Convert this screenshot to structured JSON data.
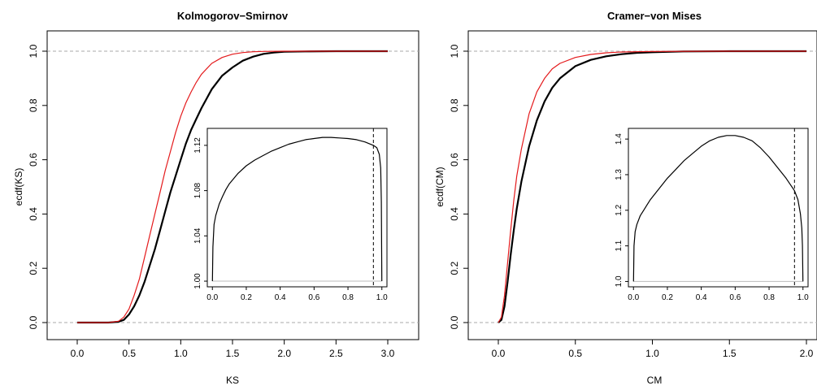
{
  "chart_data": [
    {
      "type": "line",
      "title": "Kolmogorov−Smirnov",
      "xlabel": "KS",
      "ylabel": "ecdf(KS)",
      "xlim": [
        0,
        3
      ],
      "ylim": [
        0,
        1
      ],
      "x_ticks": [
        "0.0",
        "0.5",
        "1.0",
        "1.5",
        "2.0",
        "2.5",
        "3.0"
      ],
      "y_ticks": [
        "0.0",
        "0.2",
        "0.4",
        "0.6",
        "0.8",
        "1.0"
      ],
      "reference_lines": [
        0,
        1
      ],
      "series": [
        {
          "color": "#000000",
          "x": [
            0.0,
            0.3,
            0.4,
            0.45,
            0.5,
            0.55,
            0.6,
            0.65,
            0.7,
            0.75,
            0.8,
            0.85,
            0.9,
            0.95,
            1.0,
            1.05,
            1.1,
            1.15,
            1.2,
            1.3,
            1.4,
            1.5,
            1.6,
            1.7,
            1.8,
            1.9,
            2.0,
            2.2,
            2.5,
            3.0
          ],
          "y": [
            0.0,
            0.0,
            0.003,
            0.01,
            0.03,
            0.06,
            0.1,
            0.15,
            0.21,
            0.27,
            0.34,
            0.41,
            0.48,
            0.54,
            0.6,
            0.66,
            0.71,
            0.75,
            0.79,
            0.86,
            0.91,
            0.94,
            0.965,
            0.98,
            0.99,
            0.995,
            0.998,
            0.999,
            1.0,
            1.0
          ]
        },
        {
          "color": "#e41a1c",
          "x": [
            0.0,
            0.3,
            0.4,
            0.45,
            0.5,
            0.55,
            0.6,
            0.65,
            0.7,
            0.75,
            0.8,
            0.85,
            0.9,
            0.95,
            1.0,
            1.05,
            1.1,
            1.15,
            1.2,
            1.3,
            1.4,
            1.5,
            1.6,
            1.7,
            1.8,
            2.0,
            2.5,
            3.0
          ],
          "y": [
            0.0,
            0.0,
            0.005,
            0.02,
            0.05,
            0.1,
            0.16,
            0.24,
            0.32,
            0.4,
            0.48,
            0.56,
            0.63,
            0.7,
            0.76,
            0.81,
            0.85,
            0.885,
            0.915,
            0.955,
            0.977,
            0.989,
            0.995,
            0.998,
            0.999,
            1.0,
            1.0,
            1.0
          ]
        }
      ],
      "inset": {
        "xlim": [
          -0.03,
          1.03
        ],
        "ylim": [
          0.995,
          1.135
        ],
        "x_ticks": [
          "0.0",
          "0.2",
          "0.4",
          "0.6",
          "0.8",
          "1.0"
        ],
        "y_ticks": [
          "1.00",
          "1.04",
          "1.08",
          "1.12"
        ],
        "baseline": 1.0,
        "vline": 0.95,
        "x": [
          0.0,
          0.003,
          0.01,
          0.02,
          0.04,
          0.06,
          0.08,
          0.1,
          0.15,
          0.2,
          0.25,
          0.3,
          0.35,
          0.4,
          0.45,
          0.5,
          0.55,
          0.6,
          0.65,
          0.7,
          0.75,
          0.8,
          0.85,
          0.9,
          0.95,
          0.97,
          0.985,
          0.993,
          0.997,
          1.0
        ],
        "y": [
          1.0,
          1.03,
          1.05,
          1.058,
          1.068,
          1.075,
          1.081,
          1.086,
          1.095,
          1.102,
          1.107,
          1.111,
          1.115,
          1.118,
          1.121,
          1.123,
          1.125,
          1.126,
          1.127,
          1.127,
          1.1265,
          1.126,
          1.125,
          1.123,
          1.12,
          1.118,
          1.112,
          1.1,
          1.07,
          1.0
        ]
      }
    },
    {
      "type": "line",
      "title": "Cramer−von Mises",
      "xlabel": "CM",
      "ylabel": "ecdf(CM)",
      "xlim": [
        0,
        2
      ],
      "ylim": [
        0,
        1
      ],
      "x_ticks": [
        "0.0",
        "0.5",
        "1.0",
        "1.5",
        "2.0"
      ],
      "y_ticks": [
        "0.0",
        "0.2",
        "0.4",
        "0.6",
        "0.8",
        "1.0"
      ],
      "reference_lines": [
        0,
        1
      ],
      "series": [
        {
          "color": "#000000",
          "x": [
            0.0,
            0.02,
            0.04,
            0.06,
            0.08,
            0.1,
            0.12,
            0.15,
            0.2,
            0.25,
            0.3,
            0.35,
            0.4,
            0.5,
            0.6,
            0.7,
            0.8,
            0.9,
            1.0,
            1.2,
            1.5,
            2.0
          ],
          "y": [
            0.0,
            0.01,
            0.06,
            0.15,
            0.25,
            0.34,
            0.42,
            0.52,
            0.65,
            0.745,
            0.815,
            0.865,
            0.9,
            0.945,
            0.968,
            0.981,
            0.989,
            0.994,
            0.996,
            0.999,
            1.0,
            1.0
          ]
        },
        {
          "color": "#e41a1c",
          "x": [
            0.0,
            0.02,
            0.04,
            0.06,
            0.08,
            0.1,
            0.12,
            0.15,
            0.2,
            0.25,
            0.3,
            0.35,
            0.4,
            0.5,
            0.6,
            0.7,
            0.8,
            1.0,
            1.5,
            2.0
          ],
          "y": [
            0.0,
            0.02,
            0.1,
            0.22,
            0.34,
            0.45,
            0.54,
            0.64,
            0.77,
            0.85,
            0.9,
            0.935,
            0.955,
            0.977,
            0.988,
            0.994,
            0.997,
            0.999,
            1.0,
            1.0
          ]
        }
      ],
      "inset": {
        "xlim": [
          -0.03,
          1.03
        ],
        "ylim": [
          0.985,
          1.43
        ],
        "x_ticks": [
          "0.0",
          "0.2",
          "0.4",
          "0.6",
          "0.8",
          "1.0"
        ],
        "y_ticks": [
          "1.0",
          "1.1",
          "1.2",
          "1.3",
          "1.4"
        ],
        "baseline": 1.0,
        "vline": 0.95,
        "x": [
          0.0,
          0.003,
          0.01,
          0.02,
          0.04,
          0.06,
          0.08,
          0.1,
          0.15,
          0.2,
          0.25,
          0.3,
          0.35,
          0.4,
          0.45,
          0.5,
          0.55,
          0.6,
          0.65,
          0.7,
          0.75,
          0.8,
          0.85,
          0.9,
          0.95,
          0.97,
          0.985,
          0.993,
          0.997,
          1.0
        ],
        "y": [
          1.0,
          1.1,
          1.14,
          1.16,
          1.185,
          1.2,
          1.215,
          1.23,
          1.26,
          1.29,
          1.315,
          1.34,
          1.36,
          1.38,
          1.395,
          1.405,
          1.41,
          1.41,
          1.405,
          1.395,
          1.375,
          1.35,
          1.32,
          1.29,
          1.255,
          1.23,
          1.19,
          1.15,
          1.1,
          1.0
        ]
      }
    }
  ]
}
